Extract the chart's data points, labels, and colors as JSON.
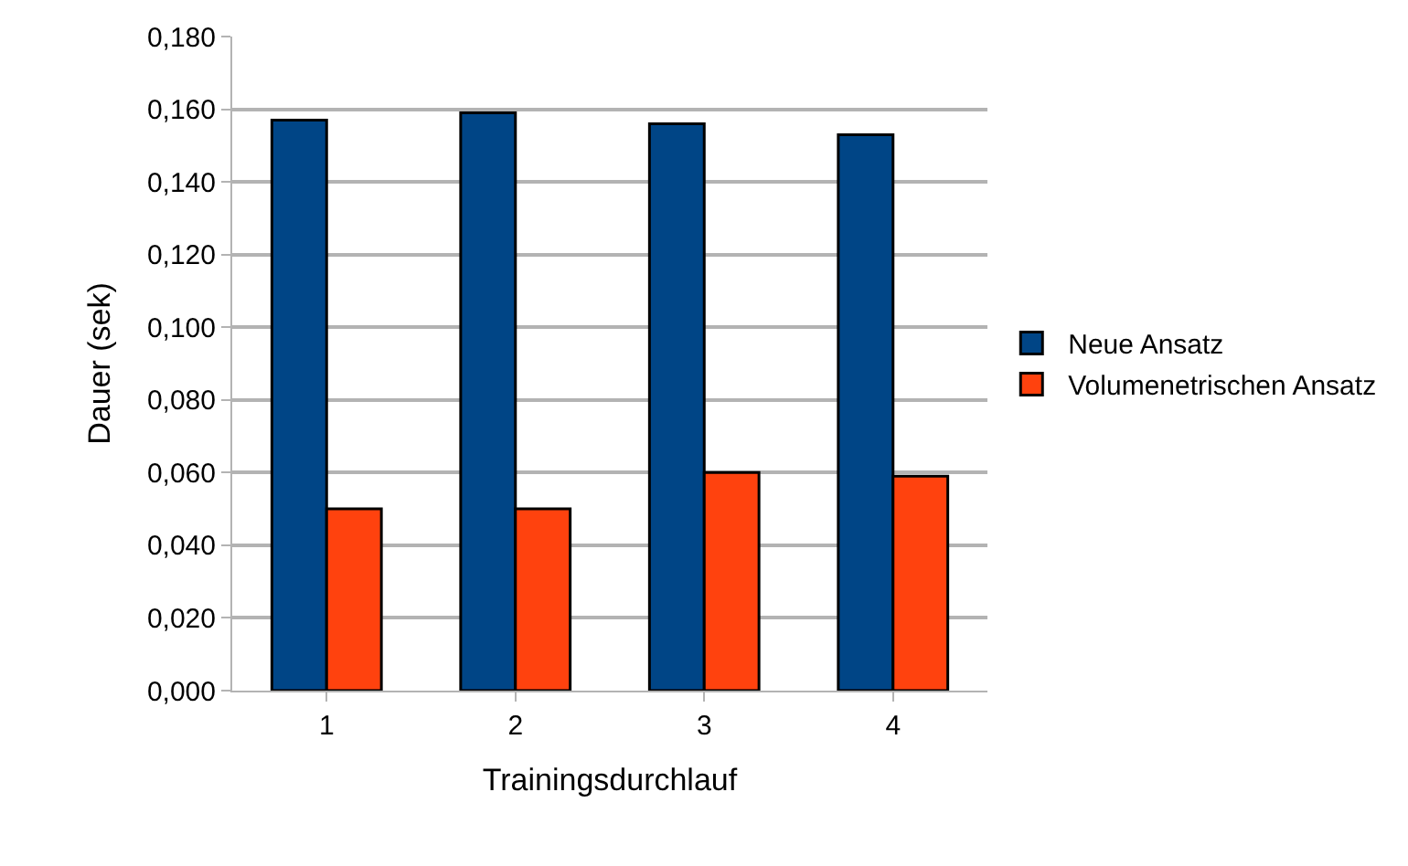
{
  "chart_data": {
    "type": "bar",
    "xlabel": "Trainingsdurchlauf",
    "ylabel": "Dauer (sek)",
    "categories": [
      "1",
      "2",
      "3",
      "4"
    ],
    "series": [
      {
        "name": "Neue Ansatz",
        "color": "#004586",
        "values": [
          0.157,
          0.159,
          0.156,
          0.153
        ]
      },
      {
        "name": "Volumenetrischen Ansatz",
        "color": "#ff420e",
        "values": [
          0.05,
          0.05,
          0.06,
          0.059
        ]
      }
    ],
    "ylim": [
      0,
      0.18
    ],
    "yticks": [
      {
        "value": 0,
        "label": "0,000"
      },
      {
        "value": 0.02,
        "label": "0,020"
      },
      {
        "value": 0.04,
        "label": "0,040"
      },
      {
        "value": 0.06,
        "label": "0,060"
      },
      {
        "value": 0.08,
        "label": "0,080"
      },
      {
        "value": 0.1,
        "label": "0,100"
      },
      {
        "value": 0.12,
        "label": "0,120"
      },
      {
        "value": 0.14,
        "label": "0,140"
      },
      {
        "value": 0.16,
        "label": "0,160"
      },
      {
        "value": 0.18,
        "label": "0,180"
      }
    ],
    "grid": "y",
    "legend": "right"
  }
}
